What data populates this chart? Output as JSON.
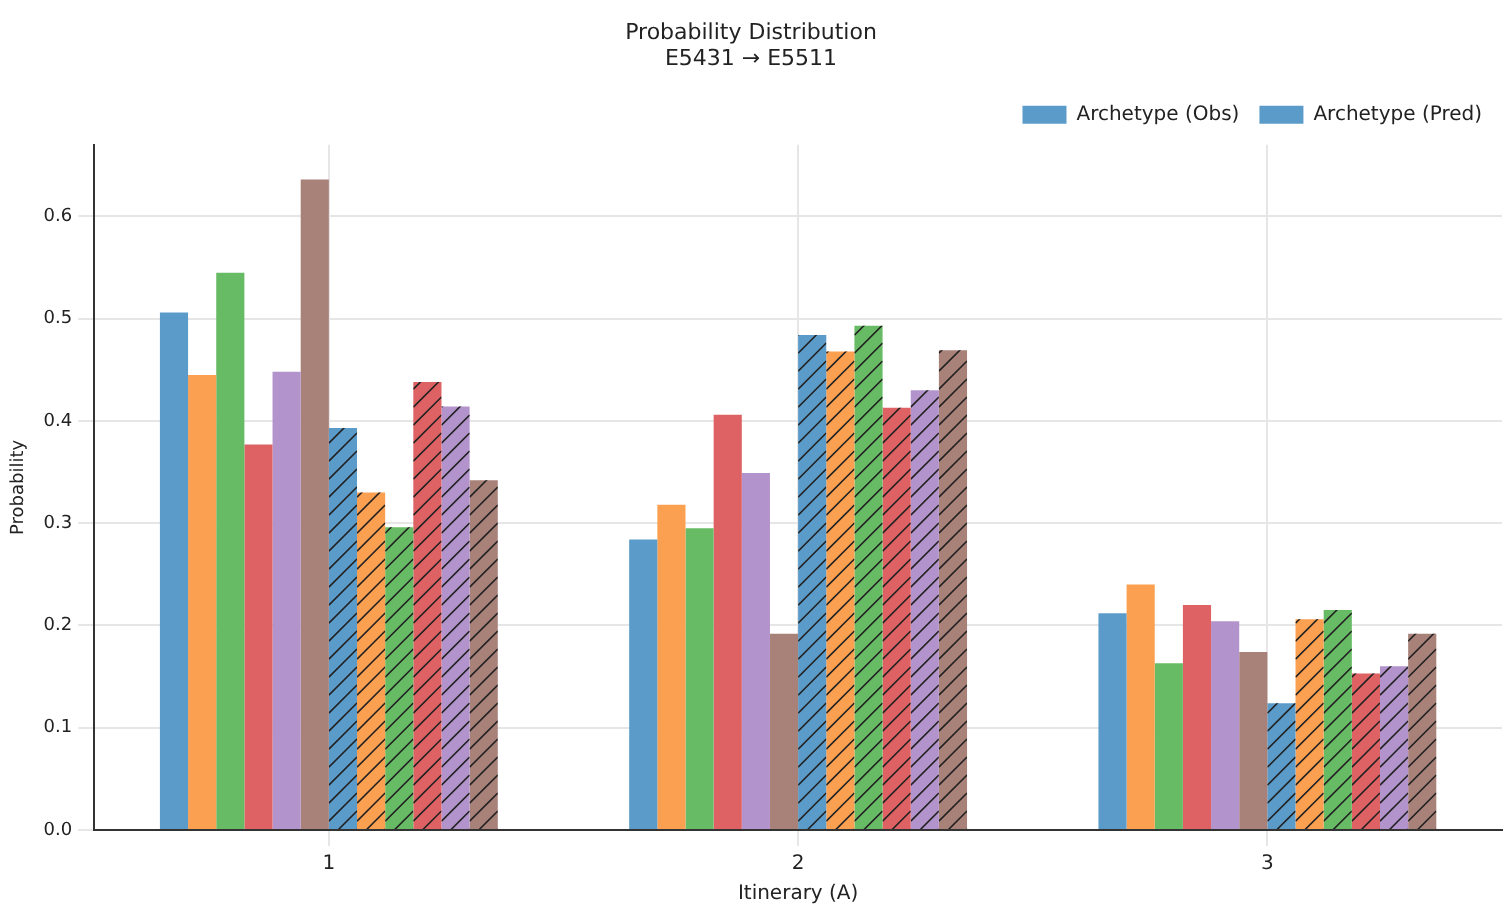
{
  "chart_data": {
    "type": "bar",
    "title": "Probability Distribution",
    "subtitle": "E5431 → E5511",
    "xlabel": "Itinerary (A)",
    "ylabel": "Probability",
    "categories": [
      "1",
      "2",
      "3"
    ],
    "series": [
      {
        "name": "Archetype (Obs)",
        "color": "#5b9bc9",
        "values": [
          0.506,
          0.284,
          0.212
        ]
      },
      {
        "color": "#fba050",
        "values": [
          0.445,
          0.318,
          0.24
        ]
      },
      {
        "color": "#68bb65",
        "values": [
          0.545,
          0.295,
          0.163
        ]
      },
      {
        "color": "#de6264",
        "values": [
          0.377,
          0.406,
          0.22
        ]
      },
      {
        "color": "#b293cb",
        "values": [
          0.448,
          0.349,
          0.204
        ]
      },
      {
        "color": "#a88179",
        "values": [
          0.636,
          0.192,
          0.174
        ]
      },
      {
        "name": "Archetype (Pred)",
        "color": "#5b9bc9",
        "values": [
          0.393,
          0.484,
          0.124
        ]
      },
      {
        "color": "#fba050",
        "values": [
          0.33,
          0.468,
          0.206
        ]
      },
      {
        "color": "#68bb65",
        "values": [
          0.296,
          0.493,
          0.215
        ]
      },
      {
        "color": "#de6264",
        "values": [
          0.438,
          0.413,
          0.153
        ]
      },
      {
        "color": "#b293cb",
        "values": [
          0.414,
          0.43,
          0.16
        ]
      },
      {
        "color": "#a88179",
        "values": [
          0.342,
          0.469,
          0.192
        ]
      }
    ],
    "ylim": [
      0,
      0.67
    ],
    "yticks": [
      {
        "value": 0,
        "label": "0.0"
      },
      0.1,
      0.2,
      0.3,
      0.4,
      0.5,
      0.6
    ],
    "grid": true,
    "legend": "top right"
  }
}
